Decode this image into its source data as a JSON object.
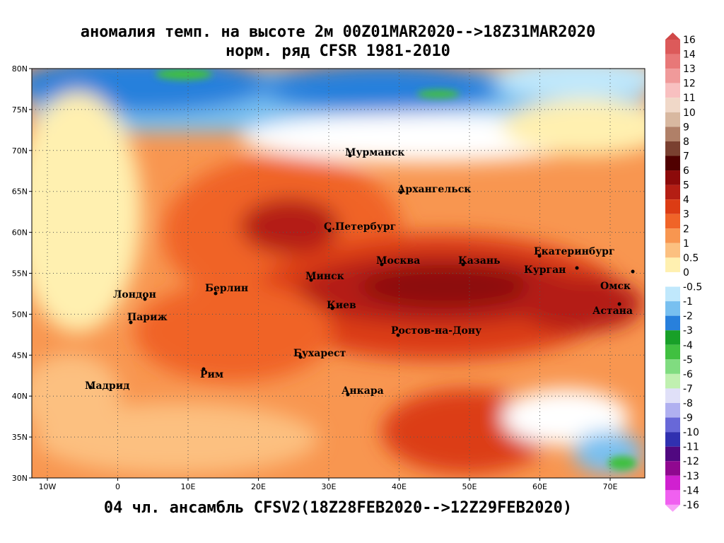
{
  "title": [
    "аномалия темп. на высоте 2м 00Z01MAR2020-->18Z31MAR2020",
    "норм. ряд CFSR 1981-2010"
  ],
  "footer": "04 чл. ансамбль CFSV2(18Z28FEB2020-->12Z29FEB2020)",
  "lat_ticks": [
    "80N",
    "75N",
    "70N",
    "65N",
    "60N",
    "55N",
    "50N",
    "45N",
    "40N",
    "35N",
    "30N"
  ],
  "lon_ticks": [
    "10W",
    "0",
    "10E",
    "20E",
    "30E",
    "40E",
    "50E",
    "60E",
    "70E"
  ],
  "cities": [
    "Мурманск",
    "Архангельск",
    "С.Петербург",
    "Екатеринбург",
    "Москва",
    "Казань",
    "Курган",
    "Минск",
    "Омск",
    "Берлин",
    "Лондон",
    "Киев",
    "Астана",
    "Париж",
    "Ростов-на-Дону",
    "Бухарест",
    "Рим",
    "Мадрид",
    "Анкара"
  ],
  "colorbar": {
    "labels": [
      16,
      14,
      13,
      12,
      11,
      10,
      9,
      8,
      7,
      6,
      5,
      4,
      3,
      2,
      1,
      0.5,
      0,
      -0.5,
      -1,
      -2,
      -3,
      -4,
      -5,
      -6,
      -7,
      -8,
      -9,
      -10,
      -11,
      -12,
      -13,
      -14,
      -16
    ],
    "colors": [
      "#d04848",
      "#dc5a5a",
      "#e87878",
      "#f09a9a",
      "#f8c0c0",
      "#f0d8c8",
      "#d8b8a0",
      "#b08068",
      "#7a4030",
      "#500000",
      "#8c0a0a",
      "#b41e14",
      "#dc3c14",
      "#f06428",
      "#f89650",
      "#fcc080",
      "#fff0b0",
      "#ffffff",
      "#c0e8fc",
      "#78c0f0",
      "#2880dc",
      "#18a028",
      "#40c040",
      "#80dc80",
      "#c0f0b0",
      "#e0e0f8",
      "#b0b0f0",
      "#6868d8",
      "#3030b0",
      "#500880",
      "#900890",
      "#d020d0",
      "#f060f0",
      "#f8a0f8"
    ]
  }
}
